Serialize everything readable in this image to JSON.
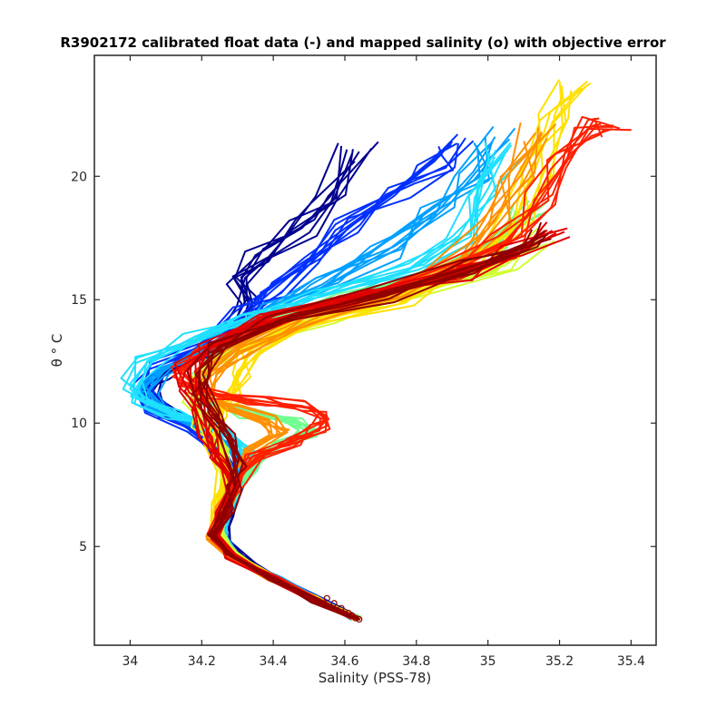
{
  "chart_data": {
    "type": "line",
    "title": "R3902172 calibrated float data (-) and mapped salinity (o) with objective error",
    "xlabel": "Salinity (PSS-78)",
    "ylabel": "θ ° C",
    "xlim": [
      33.9,
      35.47
    ],
    "ylim": [
      1.0,
      24.9
    ],
    "xticks": [
      "34",
      "34.2",
      "34.4",
      "34.6",
      "34.8",
      "35",
      "35.2",
      "35.4"
    ],
    "yticks": [
      "5",
      "10",
      "15",
      "20"
    ],
    "grid": false,
    "colormap": "jet",
    "representative_profiles": [
      {
        "name": "early-darkblue",
        "color": "#00008f",
        "points": [
          [
            34.63,
            2.1
          ],
          [
            34.55,
            2.7
          ],
          [
            34.42,
            3.6
          ],
          [
            34.32,
            4.4
          ],
          [
            34.26,
            5.3
          ],
          [
            34.27,
            6.3
          ],
          [
            34.3,
            7.5
          ],
          [
            34.26,
            8.6
          ],
          [
            34.2,
            9.6
          ],
          [
            34.1,
            10.4
          ],
          [
            34.05,
            11.2
          ],
          [
            34.08,
            12.0
          ],
          [
            34.2,
            12.8
          ],
          [
            34.28,
            13.8
          ],
          [
            34.32,
            14.9
          ],
          [
            34.31,
            15.8
          ],
          [
            34.35,
            16.8
          ],
          [
            34.48,
            17.9
          ],
          [
            34.56,
            19.2
          ],
          [
            34.64,
            21.0
          ]
        ]
      },
      {
        "name": "early-blue",
        "color": "#0030ff",
        "points": [
          [
            34.63,
            2.1
          ],
          [
            34.54,
            2.8
          ],
          [
            34.42,
            3.6
          ],
          [
            34.31,
            4.5
          ],
          [
            34.25,
            5.4
          ],
          [
            34.27,
            6.5
          ],
          [
            34.3,
            7.8
          ],
          [
            34.24,
            8.8
          ],
          [
            34.16,
            9.8
          ],
          [
            34.07,
            10.6
          ],
          [
            34.04,
            11.4
          ],
          [
            34.08,
            12.3
          ],
          [
            34.22,
            13.3
          ],
          [
            34.33,
            14.5
          ],
          [
            34.4,
            15.4
          ],
          [
            34.5,
            16.6
          ],
          [
            34.62,
            18.0
          ],
          [
            34.75,
            19.5
          ],
          [
            34.85,
            20.6
          ],
          [
            34.9,
            21.4
          ]
        ]
      },
      {
        "name": "mid-lightblue",
        "color": "#00a0ff",
        "points": [
          [
            34.63,
            2.1
          ],
          [
            34.53,
            2.8
          ],
          [
            34.41,
            3.7
          ],
          [
            34.3,
            4.5
          ],
          [
            34.25,
            5.5
          ],
          [
            34.27,
            6.6
          ],
          [
            34.32,
            7.9
          ],
          [
            34.28,
            9.0
          ],
          [
            34.2,
            9.9
          ],
          [
            34.08,
            10.6
          ],
          [
            34.05,
            11.3
          ],
          [
            34.1,
            12.2
          ],
          [
            34.25,
            13.4
          ],
          [
            34.4,
            14.6
          ],
          [
            34.55,
            15.6
          ],
          [
            34.72,
            17.0
          ],
          [
            34.86,
            18.6
          ],
          [
            34.96,
            20.2
          ],
          [
            35.02,
            21.6
          ]
        ]
      },
      {
        "name": "cyan",
        "color": "#20e0ff",
        "points": [
          [
            34.63,
            2.1
          ],
          [
            34.52,
            2.8
          ],
          [
            34.4,
            3.7
          ],
          [
            34.29,
            4.6
          ],
          [
            34.25,
            5.6
          ],
          [
            34.27,
            6.8
          ],
          [
            34.33,
            8.0
          ],
          [
            34.32,
            9.0
          ],
          [
            34.24,
            9.8
          ],
          [
            34.12,
            10.3
          ],
          [
            34.03,
            10.9
          ],
          [
            34.0,
            11.6
          ],
          [
            34.05,
            12.5
          ],
          [
            34.18,
            13.5
          ],
          [
            34.35,
            14.4
          ],
          [
            34.55,
            15.2
          ],
          [
            34.78,
            16.2
          ],
          [
            34.92,
            17.6
          ],
          [
            35.0,
            19.5
          ],
          [
            35.05,
            21.0
          ]
        ]
      },
      {
        "name": "mid-green",
        "color": "#70ff90",
        "points": [
          [
            34.63,
            2.1
          ],
          [
            34.52,
            2.8
          ],
          [
            34.4,
            3.7
          ],
          [
            34.29,
            4.6
          ],
          [
            34.24,
            5.5
          ],
          [
            34.27,
            6.7
          ],
          [
            34.33,
            8.0
          ],
          [
            34.4,
            9.0
          ],
          [
            34.5,
            9.6
          ],
          [
            34.45,
            10.1
          ],
          [
            34.32,
            10.4
          ],
          [
            34.2,
            11.0
          ],
          [
            34.18,
            11.8
          ],
          [
            34.24,
            12.8
          ],
          [
            34.38,
            14.0
          ],
          [
            34.62,
            15.0
          ],
          [
            34.85,
            16.0
          ],
          [
            35.02,
            17.2
          ],
          [
            35.12,
            18.8
          ]
        ]
      },
      {
        "name": "yellow-green",
        "color": "#d0ff30",
        "points": [
          [
            34.63,
            2.1
          ],
          [
            34.51,
            2.9
          ],
          [
            34.39,
            3.8
          ],
          [
            34.28,
            4.7
          ],
          [
            34.24,
            5.6
          ],
          [
            34.25,
            6.8
          ],
          [
            34.28,
            8.0
          ],
          [
            34.25,
            9.0
          ],
          [
            34.2,
            10.0
          ],
          [
            34.18,
            11.0
          ],
          [
            34.2,
            12.0
          ],
          [
            34.32,
            13.2
          ],
          [
            34.55,
            14.3
          ],
          [
            34.82,
            15.3
          ],
          [
            35.05,
            16.4
          ],
          [
            35.15,
            17.6
          ]
        ]
      },
      {
        "name": "yellow",
        "color": "#ffe000",
        "points": [
          [
            34.63,
            2.1
          ],
          [
            34.51,
            2.9
          ],
          [
            34.39,
            3.8
          ],
          [
            34.28,
            4.7
          ],
          [
            34.24,
            5.6
          ],
          [
            34.25,
            6.8
          ],
          [
            34.26,
            8.0
          ],
          [
            34.23,
            9.2
          ],
          [
            34.24,
            10.3
          ],
          [
            34.28,
            11.0
          ],
          [
            34.3,
            12.0
          ],
          [
            34.34,
            13.0
          ],
          [
            34.5,
            14.0
          ],
          [
            34.75,
            15.0
          ],
          [
            34.98,
            16.5
          ],
          [
            35.08,
            18.3
          ],
          [
            35.13,
            20.2
          ],
          [
            35.18,
            22.2
          ],
          [
            35.26,
            23.6
          ]
        ]
      },
      {
        "name": "orange",
        "color": "#ff9000",
        "points": [
          [
            34.63,
            2.1
          ],
          [
            34.52,
            2.8
          ],
          [
            34.4,
            3.7
          ],
          [
            34.28,
            4.6
          ],
          [
            34.23,
            5.4
          ],
          [
            34.26,
            6.6
          ],
          [
            34.3,
            7.8
          ],
          [
            34.34,
            8.9
          ],
          [
            34.42,
            9.6
          ],
          [
            34.38,
            10.1
          ],
          [
            34.28,
            10.6
          ],
          [
            34.2,
            11.2
          ],
          [
            34.22,
            12.0
          ],
          [
            34.3,
            13.0
          ],
          [
            34.48,
            14.2
          ],
          [
            34.72,
            15.3
          ],
          [
            34.92,
            16.6
          ],
          [
            35.02,
            18.2
          ],
          [
            35.08,
            20.0
          ],
          [
            35.15,
            21.8
          ]
        ]
      },
      {
        "name": "red-loop",
        "color": "#ff2000",
        "points": [
          [
            34.63,
            2.1
          ],
          [
            34.52,
            2.8
          ],
          [
            34.4,
            3.7
          ],
          [
            34.28,
            4.6
          ],
          [
            34.23,
            5.4
          ],
          [
            34.26,
            6.5
          ],
          [
            34.3,
            7.6
          ],
          [
            34.35,
            8.6
          ],
          [
            34.45,
            9.2
          ],
          [
            34.53,
            9.8
          ],
          [
            34.55,
            10.3
          ],
          [
            34.48,
            10.7
          ],
          [
            34.36,
            10.9
          ],
          [
            34.24,
            11.2
          ],
          [
            34.17,
            11.6
          ],
          [
            34.15,
            12.1
          ],
          [
            34.2,
            12.8
          ],
          [
            34.35,
            14.0
          ],
          [
            34.6,
            15.0
          ],
          [
            34.85,
            16.0
          ],
          [
            35.05,
            17.4
          ],
          [
            35.15,
            19.0
          ],
          [
            35.22,
            20.6
          ],
          [
            35.3,
            22.0
          ],
          [
            35.35,
            22.0
          ]
        ]
      },
      {
        "name": "late-red",
        "color": "#e00000",
        "points": [
          [
            34.63,
            2.1
          ],
          [
            34.52,
            2.8
          ],
          [
            34.4,
            3.7
          ],
          [
            34.28,
            4.6
          ],
          [
            34.23,
            5.4
          ],
          [
            34.26,
            6.5
          ],
          [
            34.28,
            7.5
          ],
          [
            34.25,
            8.5
          ],
          [
            34.22,
            9.5
          ],
          [
            34.2,
            10.5
          ],
          [
            34.17,
            11.4
          ],
          [
            34.16,
            12.2
          ],
          [
            34.22,
            13.1
          ],
          [
            34.4,
            14.2
          ],
          [
            34.68,
            15.2
          ],
          [
            34.92,
            16.1
          ],
          [
            35.08,
            17.0
          ],
          [
            35.18,
            17.8
          ]
        ]
      },
      {
        "name": "late-darkred",
        "color": "#900000",
        "points": [
          [
            34.63,
            2.1
          ],
          [
            34.52,
            2.8
          ],
          [
            34.4,
            3.7
          ],
          [
            34.28,
            4.6
          ],
          [
            34.23,
            5.4
          ],
          [
            34.27,
            6.4
          ],
          [
            34.29,
            7.4
          ],
          [
            34.3,
            8.4
          ],
          [
            34.27,
            9.4
          ],
          [
            34.23,
            10.4
          ],
          [
            34.2,
            11.3
          ],
          [
            34.19,
            12.1
          ],
          [
            34.24,
            13.0
          ],
          [
            34.42,
            14.2
          ],
          [
            34.7,
            15.2
          ],
          [
            34.95,
            16.3
          ],
          [
            35.1,
            17.2
          ],
          [
            35.16,
            17.8
          ]
        ]
      }
    ],
    "mapped_salinity_markers": [
      [
        34.55,
        2.9
      ],
      [
        34.57,
        2.7
      ],
      [
        34.59,
        2.5
      ],
      [
        34.61,
        2.3
      ],
      [
        34.62,
        2.2
      ],
      [
        34.63,
        2.1
      ],
      [
        34.64,
        2.05
      ]
    ]
  }
}
